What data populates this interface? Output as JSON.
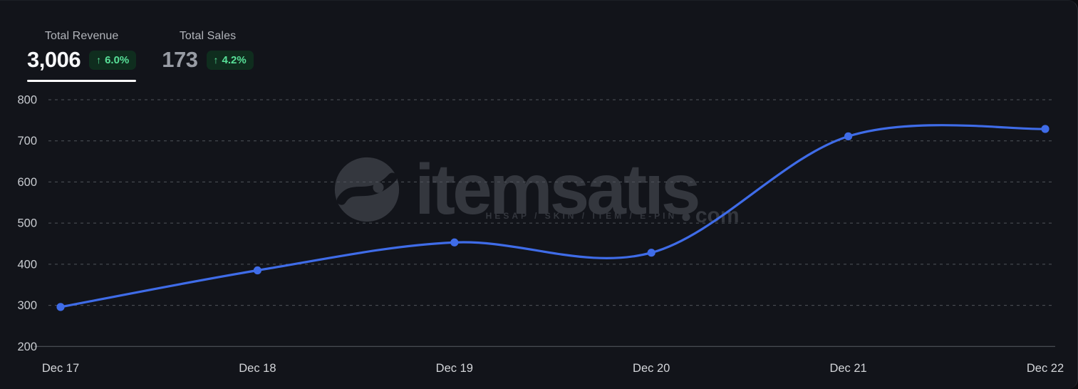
{
  "header": {
    "arrow_icon": "↑",
    "stats": [
      {
        "label": "Total Revenue",
        "value": "3,006",
        "change": "6.0%",
        "direction": "up",
        "active": true
      },
      {
        "label": "Total Sales",
        "value": "173",
        "change": "4.2%",
        "direction": "up",
        "active": false
      }
    ]
  },
  "watermark": {
    "logo": "itemsatis-logo",
    "brand": "itemsatıs",
    "dot": "●",
    "domain": "com",
    "tagline": "HESAP / SKIN / ITEM / E-PIN"
  },
  "chart_data": {
    "type": "line",
    "title": "",
    "xlabel": "",
    "ylabel": "",
    "x": [
      "Dec 17",
      "Dec 18",
      "Dec 19",
      "Dec 20",
      "Dec 21",
      "Dec 22"
    ],
    "series": [
      {
        "name": "Total Revenue",
        "values": [
          296,
          385,
          453,
          428,
          711,
          729
        ]
      }
    ],
    "ylim": [
      200,
      800
    ],
    "yticks": [
      200,
      300,
      400,
      500,
      600,
      700,
      800
    ],
    "grid": "horizontal-dashed",
    "legend": "none",
    "curve": "smooth"
  },
  "colors": {
    "background": "#12141a",
    "line": "#3f6ce8",
    "marker": "#3f6ce8",
    "grid_dashed": "#50545b",
    "axis_solid": "#585c63",
    "y_tick_label": "#c8cbd0",
    "x_tick_label": "#d3d5d9",
    "badge_bg": "#0f2d1e",
    "badge_text": "#58e098",
    "active_indicator": "#ffffff",
    "watermark": "#34373e"
  }
}
